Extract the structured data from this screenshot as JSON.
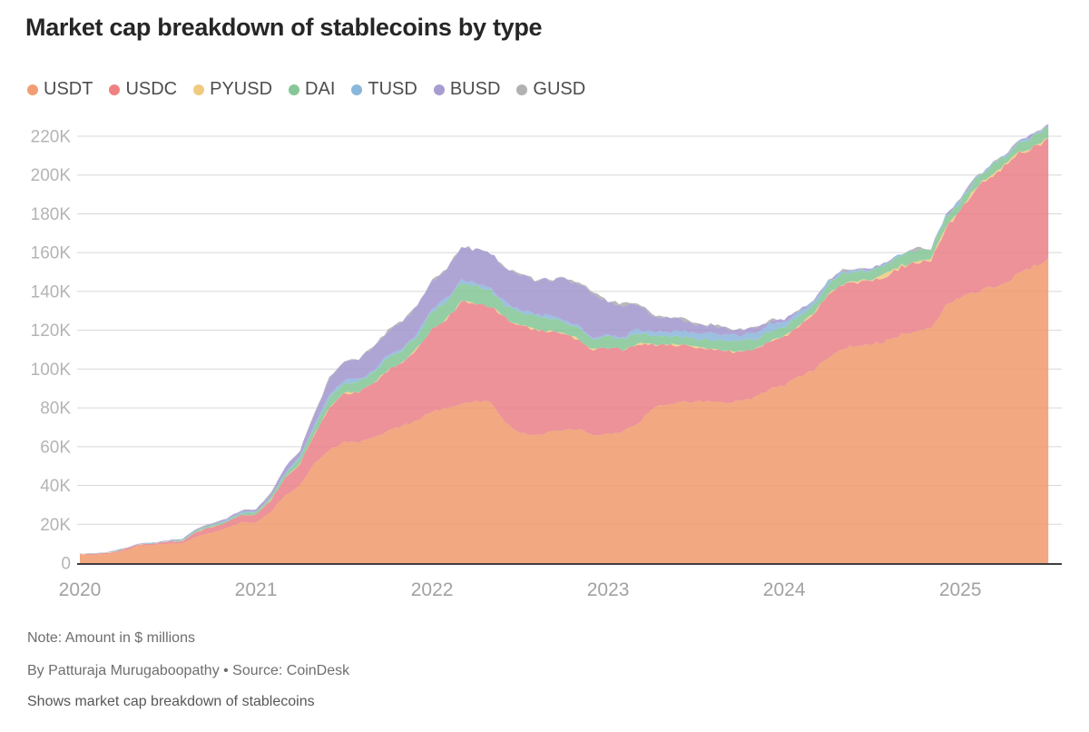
{
  "header": {
    "title": "Market cap breakdown of stablecoins by type"
  },
  "legend": {
    "items": [
      {
        "label": "USDT",
        "color": "#F29E74"
      },
      {
        "label": "USDC",
        "color": "#F08182"
      },
      {
        "label": "PYUSD",
        "color": "#EFCB80"
      },
      {
        "label": "DAI",
        "color": "#86C795"
      },
      {
        "label": "TUSD",
        "color": "#88B7DB"
      },
      {
        "label": "BUSD",
        "color": "#A89CD2"
      },
      {
        "label": "GUSD",
        "color": "#B1B1B1"
      }
    ]
  },
  "chart_data": {
    "type": "area",
    "stacked": true,
    "title": "Market cap breakdown of stablecoins by type",
    "unit": "$ millions",
    "x_start": "2020-01",
    "x_end": "2025-07",
    "x_interval": "month",
    "x_start_year": 2020,
    "xticks": [
      2020,
      2021,
      2022,
      2023,
      2024,
      2025
    ],
    "yticks": [
      "220K",
      "200K",
      "180K",
      "160K",
      "140K",
      "120K",
      "100K",
      "80K",
      "60K",
      "40K",
      "20K",
      "0"
    ],
    "ylim_millions": [
      0,
      230000
    ],
    "grid": "horizontal",
    "legend_position": "top",
    "series": [
      {
        "name": "USDT",
        "color": "#F29E74",
        "fill": "#F0996B",
        "values": [
          4100,
          4300,
          4600,
          6400,
          8800,
          9200,
          9900,
          10000,
          13800,
          15700,
          17900,
          20900,
          21000,
          26400,
          34800,
          40100,
          51800,
          58100,
          62600,
          62000,
          64500,
          68300,
          70500,
          73500,
          78300,
          79700,
          82200,
          83100,
          83200,
          72500,
          66900,
          65900,
          67600,
          68400,
          69100,
          65900,
          66200,
          68000,
          71500,
          79800,
          81800,
          83200,
          83300,
          83800,
          82900,
          83700,
          85400,
          89500,
          91700,
          96100,
          99400,
          106300,
          110500,
          112100,
          112700,
          114600,
          117800,
          119600,
          120500,
          132900,
          137400,
          139400,
          142200,
          144000,
          149100,
          153000,
          156500
        ]
      },
      {
        "name": "USDC",
        "color": "#F08182",
        "fill": "#E97F86",
        "values": [
          500,
          400,
          700,
          700,
          700,
          900,
          1100,
          1400,
          2400,
          2800,
          2900,
          3900,
          4000,
          5700,
          9000,
          11000,
          14600,
          22100,
          24900,
          26000,
          27900,
          31300,
          32700,
          37300,
          42400,
          45900,
          52200,
          50600,
          48900,
          53800,
          55600,
          54200,
          52000,
          50000,
          46200,
          43900,
          44600,
          42000,
          41500,
          32800,
          30400,
          29000,
          27900,
          26100,
          26000,
          25300,
          24400,
          24300,
          24600,
          26300,
          28600,
          32400,
          33300,
          32600,
          32500,
          33800,
          34800,
          35600,
          34800,
          39500,
          43900,
          52800,
          56500,
          60300,
          62100,
          61000,
          61800
        ]
      },
      {
        "name": "PYUSD",
        "color": "#EFCB80",
        "fill": "#EFC87C",
        "values": [
          0,
          0,
          0,
          0,
          0,
          0,
          0,
          0,
          0,
          0,
          0,
          0,
          0,
          0,
          0,
          0,
          0,
          0,
          0,
          0,
          0,
          0,
          0,
          0,
          0,
          0,
          0,
          0,
          0,
          0,
          0,
          0,
          0,
          0,
          0,
          0,
          0,
          0,
          0,
          0,
          0,
          0,
          0,
          40,
          100,
          150,
          160,
          200,
          300,
          300,
          300,
          240,
          300,
          400,
          570,
          1000,
          690,
          600,
          500,
          490,
          500,
          560,
          700,
          800,
          870,
          950,
          900
        ]
      },
      {
        "name": "DAI",
        "color": "#86C795",
        "fill": "#83C494",
        "values": [
          50,
          90,
          100,
          80,
          100,
          130,
          200,
          450,
          900,
          930,
          1000,
          1100,
          1200,
          1600,
          2200,
          3000,
          3800,
          4600,
          5100,
          5400,
          5800,
          6400,
          6500,
          6600,
          9000,
          9400,
          9800,
          9100,
          8500,
          6600,
          6900,
          7000,
          6800,
          6400,
          6000,
          5800,
          5900,
          5600,
          5200,
          4900,
          4700,
          4500,
          4300,
          5300,
          5500,
          5300,
          5400,
          5300,
          5300,
          4900,
          4700,
          4900,
          5300,
          5200,
          5100,
          5100,
          5300,
          5600,
          5400,
          5100,
          5000,
          4800,
          4600,
          4500,
          4700,
          5100,
          5400
        ]
      },
      {
        "name": "TUSD",
        "color": "#88B7DB",
        "fill": "#8AB5DB",
        "values": [
          140,
          140,
          140,
          140,
          140,
          150,
          180,
          250,
          300,
          300,
          300,
          300,
          300,
          320,
          350,
          400,
          1200,
          1500,
          1400,
          1300,
          1300,
          1400,
          1300,
          1200,
          1400,
          1400,
          1400,
          1300,
          1200,
          1200,
          1200,
          1000,
          1000,
          900,
          800,
          800,
          900,
          1000,
          2000,
          2100,
          2000,
          3100,
          2800,
          3400,
          3100,
          2600,
          3400,
          3800,
          2400,
          1700,
          1300,
          1200,
          1100,
          600,
          500,
          500,
          500,
          500,
          500,
          500,
          500,
          500,
          500,
          500,
          500,
          500,
          500
        ]
      },
      {
        "name": "BUSD",
        "color": "#A89CD2",
        "fill": "#A195CE",
        "values": [
          30,
          60,
          100,
          190,
          200,
          200,
          300,
          400,
          500,
          600,
          700,
          1000,
          1000,
          1700,
          2900,
          3600,
          5500,
          9000,
          9700,
          10600,
          11800,
          12400,
          13300,
          14000,
          14600,
          14900,
          17300,
          17600,
          17700,
          17500,
          17800,
          17600,
          18600,
          20500,
          21700,
          22900,
          16600,
          16200,
          13400,
          8000,
          7100,
          5700,
          4300,
          3900,
          3300,
          3100,
          2200,
          1900,
          1100,
          700,
          350,
          100,
          70,
          60,
          50,
          40,
          30,
          30,
          20,
          20,
          10,
          10,
          10,
          10,
          10,
          10,
          10
        ]
      },
      {
        "name": "GUSD",
        "color": "#B1B1B1",
        "fill": "#ACACAC",
        "values": [
          10,
          10,
          10,
          10,
          10,
          10,
          10,
          20,
          20,
          20,
          30,
          70,
          100,
          120,
          130,
          160,
          180,
          200,
          200,
          200,
          250,
          300,
          300,
          200,
          160,
          170,
          200,
          200,
          200,
          250,
          300,
          300,
          400,
          500,
          600,
          600,
          600,
          700,
          600,
          560,
          560,
          560,
          560,
          500,
          400,
          300,
          200,
          170,
          150,
          130,
          100,
          80,
          70,
          70,
          70,
          60,
          60,
          60,
          60,
          60,
          60,
          60,
          60,
          60,
          60,
          60,
          60
        ]
      }
    ]
  },
  "footer": {
    "note": "Note: Amount in $ millions",
    "byline": "By Patturaja Murugaboopathy  • Source: CoinDesk",
    "description": "Shows market cap breakdown of stablecoins"
  },
  "style_colors": {
    "gridline": "#d8d8d8",
    "baseline": "#3e3e3e",
    "y_label": "#b4b4b4",
    "x_label": "#a2a2a2"
  }
}
